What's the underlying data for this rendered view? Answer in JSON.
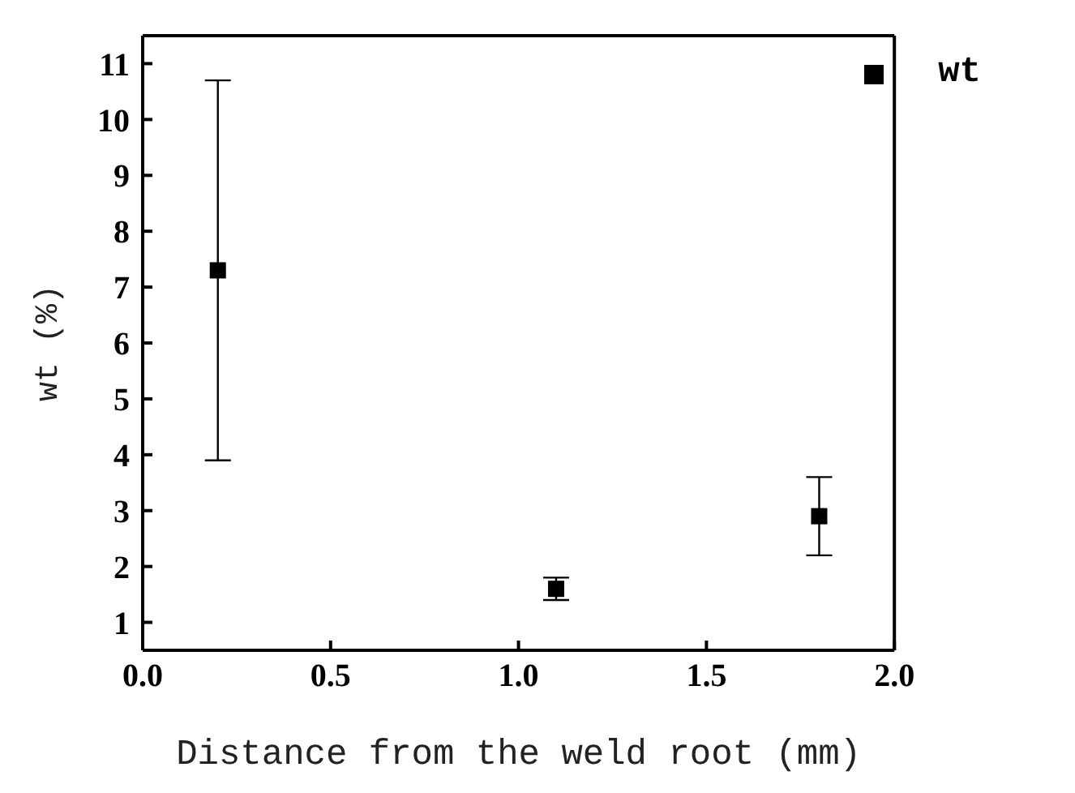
{
  "chart_data": {
    "type": "scatter",
    "xlabel": "Distance from the weld root (mm)",
    "ylabel": "wt (%)",
    "x": [
      0.2,
      1.1,
      1.8
    ],
    "series": [
      {
        "name": "wt",
        "color": "#000000",
        "values": [
          7.3,
          1.6,
          2.9
        ],
        "errors": [
          3.4,
          0.2,
          0.7
        ]
      }
    ],
    "xlim": [
      0,
      2
    ],
    "xticks": [
      {
        "value": 0,
        "label": "0.0"
      },
      {
        "value": 0.5,
        "label": "0.5"
      },
      {
        "value": 1,
        "label": "1.0"
      },
      {
        "value": 1.5,
        "label": "1.5"
      },
      {
        "value": 2,
        "label": "2.0"
      }
    ],
    "ylim": [
      0.5,
      11.5
    ],
    "yticks": [
      1,
      2,
      3,
      4,
      5,
      6,
      7,
      8,
      9,
      10,
      11
    ],
    "marker": "square",
    "legend": "top right",
    "grid": false
  }
}
